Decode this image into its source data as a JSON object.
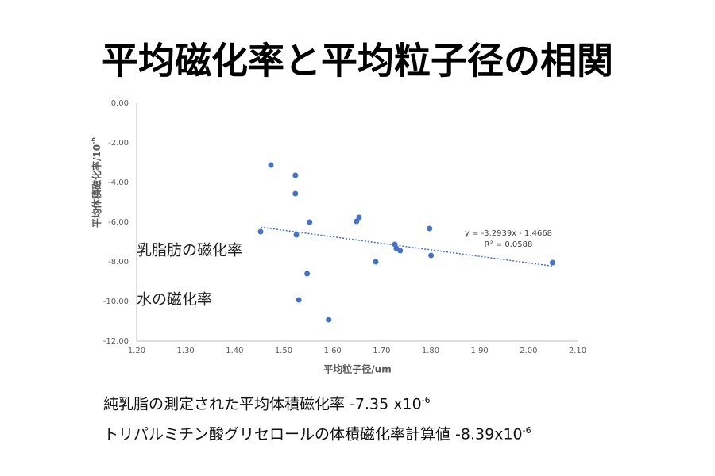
{
  "chart_data": {
    "type": "scatter",
    "title": "平均磁化率と平均粒子径の相関",
    "xlabel": "平均粒子径/um",
    "ylabel": "平均体積磁化率/10",
    "ylabel_sup": "-6",
    "x": [
      1.474,
      1.524,
      1.524,
      1.553,
      1.453,
      1.526,
      1.649,
      1.654,
      1.798,
      1.727,
      1.73,
      1.738,
      1.688,
      1.801,
      1.548,
      1.531,
      1.592,
      2.049
    ],
    "values": [
      -3.12,
      -3.64,
      -4.56,
      -6.0,
      -6.48,
      -6.64,
      -5.96,
      -5.76,
      -6.32,
      -7.12,
      -7.32,
      -7.44,
      -8.0,
      -7.68,
      -8.6,
      -9.92,
      -10.92,
      -8.04
    ],
    "color": "#4472c4",
    "xlim": [
      1.2,
      2.1
    ],
    "xticks": [
      {
        "value": 1.2,
        "label": "1.20"
      },
      {
        "value": 1.3,
        "label": "1.30"
      },
      {
        "value": 1.4,
        "label": "1.40"
      },
      {
        "value": 1.5,
        "label": "1.50"
      },
      {
        "value": 1.6,
        "label": "1.60"
      },
      {
        "value": 1.7,
        "label": "1.70"
      },
      {
        "value": 1.8,
        "label": "1.80"
      },
      {
        "value": 1.9,
        "label": "1.90"
      },
      {
        "value": 2.0,
        "label": "2.00"
      },
      {
        "value": 2.1,
        "label": "2.10"
      }
    ],
    "ylim": [
      -12,
      0
    ],
    "yticks": [
      {
        "value": 0,
        "label": "0.00"
      },
      {
        "value": -2,
        "label": "-2.00"
      },
      {
        "value": -4,
        "label": "-4.00"
      },
      {
        "value": -6,
        "label": "-6.00"
      },
      {
        "value": -8,
        "label": "-8.00"
      },
      {
        "value": -10,
        "label": "-10.00"
      },
      {
        "value": -12,
        "label": "-12.00"
      }
    ],
    "grid": false,
    "trendline": {
      "slope": -3.2939,
      "intercept": -1.4668,
      "color": "#4472c4",
      "equation": "y = -3.2939x - 1.4668",
      "r2_label": "R² = 0.0588"
    },
    "annotations": [
      "乳脂肪の磁化率",
      "水の磁化率"
    ]
  },
  "notes": [
    {
      "text": "純乳脂の測定された平均体積磁化率 -7.35 x10",
      "sup": "-6"
    },
    {
      "text": "トリパルミチン酸グリセロールの体積磁化率計算値 -8.39x10",
      "sup": "-6"
    }
  ]
}
